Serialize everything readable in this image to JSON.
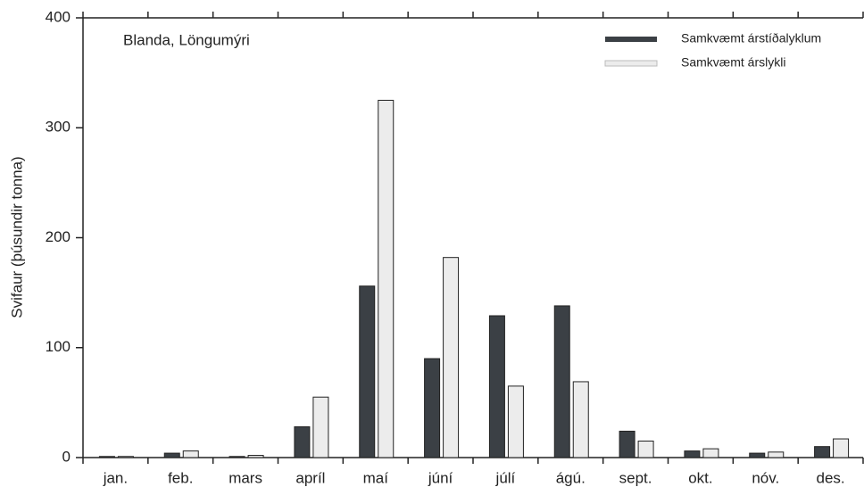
{
  "chart_data": {
    "type": "bar",
    "annotation": "Blanda, Löngumýri",
    "y_label": "Svifaur (þúsundir tonna)",
    "categories": [
      "jan.",
      "feb.",
      "mars",
      "apríl",
      "maí",
      "júní",
      "júlí",
      "ágú.",
      "sept.",
      "okt.",
      "nóv.",
      "des."
    ],
    "series": [
      {
        "name": "Samkvæmt árstíðalyklum",
        "color": "#3b4045",
        "values": [
          1,
          4,
          1,
          28,
          156,
          90,
          129,
          138,
          24,
          6,
          4,
          10
        ]
      },
      {
        "name": "Samkvæmt árslykli",
        "color": "#ececec",
        "values": [
          1,
          6,
          2,
          55,
          325,
          182,
          65,
          69,
          15,
          8,
          5,
          17
        ]
      }
    ],
    "ylim": [
      0,
      400
    ],
    "yticks": [
      0,
      100,
      200,
      300,
      400
    ],
    "legend": "upper right"
  }
}
